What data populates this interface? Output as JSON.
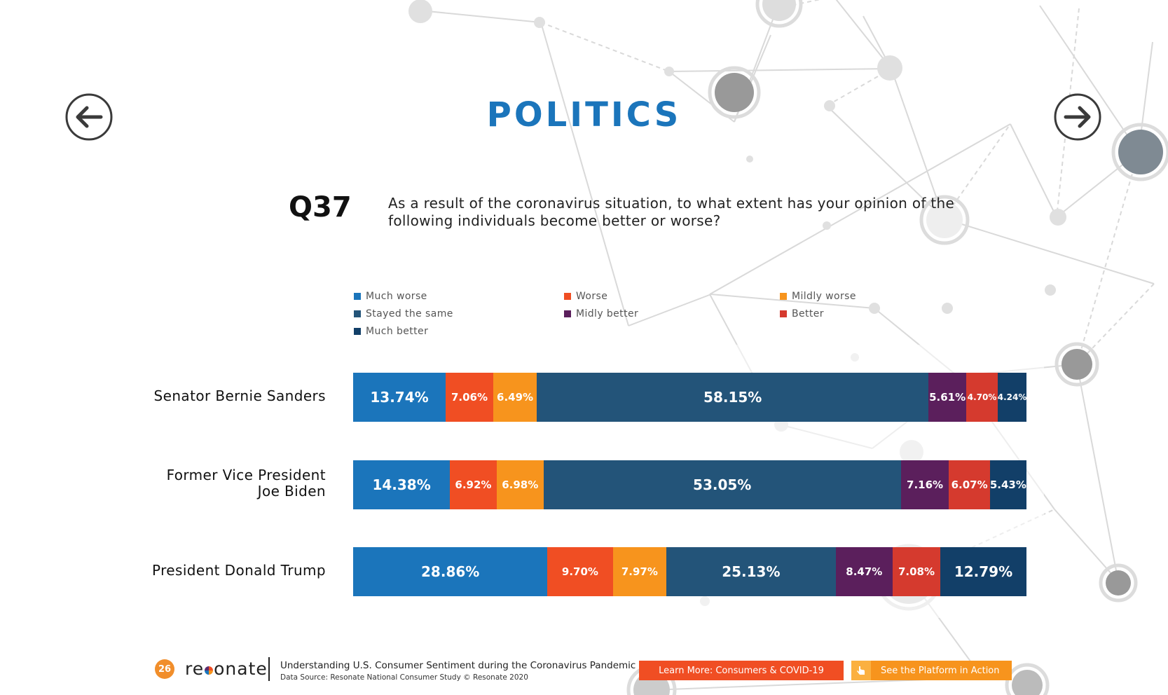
{
  "page": {
    "title": "POLITICS",
    "question_number": "Q37",
    "question_text": "As a result of the coronavirus situation, to what extent has your opinion of the following individuals become better or worse?"
  },
  "nav": {
    "prev_icon": "arrow-left-icon",
    "next_icon": "arrow-right-icon"
  },
  "chart_data": {
    "type": "bar",
    "orientation": "horizontal",
    "stacked": true,
    "title": "",
    "xlabel": "",
    "ylabel": "",
    "xlim": [
      0,
      100
    ],
    "legend_position": "top",
    "categories": [
      [
        "Senator Bernie Sanders"
      ],
      [
        "Former Vice President",
        "Joe Biden"
      ],
      [
        "President Donald Trump"
      ]
    ],
    "series": [
      {
        "name": "Much worse",
        "color": "#1b75bb",
        "values": [
          13.74,
          14.38,
          28.86
        ],
        "labels": [
          "13.74%",
          "14.38%",
          "28.86%"
        ]
      },
      {
        "name": "Worse",
        "color": "#f04e23",
        "values": [
          7.06,
          6.92,
          9.7
        ],
        "labels": [
          "7.06%",
          "6.92%",
          "9.70%"
        ]
      },
      {
        "name": "Mildly worse",
        "color": "#f7941d",
        "values": [
          6.49,
          6.98,
          7.97
        ],
        "labels": [
          "6.49%",
          "6.98%",
          "7.97%"
        ]
      },
      {
        "name": "Stayed the same",
        "color": "#235479",
        "values": [
          58.15,
          53.05,
          25.13
        ],
        "labels": [
          "58.15%",
          "53.05%",
          "25.13%"
        ]
      },
      {
        "name": "Midly better",
        "color": "#5b1f5c",
        "values": [
          5.61,
          7.16,
          8.47
        ],
        "labels": [
          "5.61%",
          "7.16%",
          "8.47%"
        ]
      },
      {
        "name": "Better",
        "color": "#d53a2e",
        "values": [
          4.7,
          6.07,
          7.08
        ],
        "labels": [
          "4.70%",
          "6.07%",
          "7.08%"
        ]
      },
      {
        "name": "Much better",
        "color": "#123f68",
        "values": [
          4.24,
          5.43,
          12.79
        ],
        "labels": [
          "4.24%",
          "5.43%",
          "12.79%"
        ]
      }
    ]
  },
  "footer": {
    "page_number": "26",
    "logo_left": "re",
    "logo_right": "onate",
    "report_title": "Understanding U.S. Consumer Sentiment during the Coronavirus Pandemic",
    "data_source": "Data Source: Resonate National Consumer Study © Resonate 2020",
    "learn_more_label": "Learn More: Consumers & COVID-19",
    "platform_label": "See the Platform in Action",
    "platform_icon": "pointer-hand-icon"
  }
}
